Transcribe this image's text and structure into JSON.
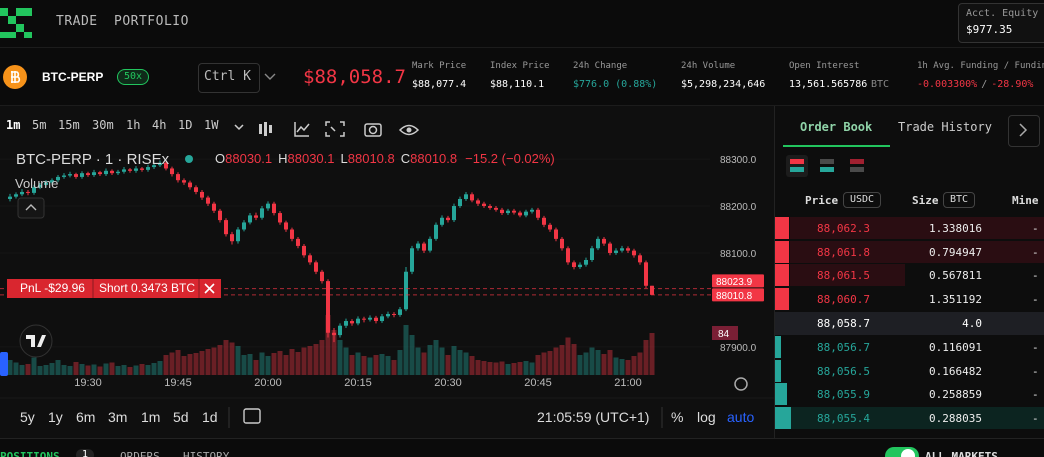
{
  "nav": {
    "links": [
      "TRADE",
      "PORTFOLIO"
    ],
    "equity_label": "Acct. Equity",
    "equity": "$977.35"
  },
  "ticker": {
    "symbol": "BTC-PERP",
    "leverage": "50x",
    "search": "Ctrl K",
    "price": "$88,058.7",
    "stats": [
      {
        "label": "Mark Price",
        "value": "$88,077.4"
      },
      {
        "label": "Index Price",
        "value": "$88,110.1"
      },
      {
        "label": "24h Change",
        "value": "$776.0 (0.88%)"
      },
      {
        "label": "24h Volume",
        "value": "$5,298,234,646"
      },
      {
        "label": "Open Interest",
        "value": "13,561.565786",
        "unit": "BTC"
      }
    ],
    "funding_label": "1h Avg. Funding / Fundin",
    "funding_1h": "-0.003300%",
    "funding_sep": "/",
    "funding_annual": "-28.90%"
  },
  "toolbar": {
    "intervals": [
      "1m",
      "5m",
      "15m",
      "30m",
      "1h",
      "4h",
      "1D",
      "1W"
    ]
  },
  "chart": {
    "type": "candlestick",
    "title": "BTC-PERP · 1 · RISEx",
    "ohlc_labels": [
      "O",
      "H",
      "L",
      "C"
    ],
    "change": "−15.2 (−0.02%)",
    "volume_label": "Volume",
    "ylim": [
      87840,
      88330
    ],
    "yticks": [
      {
        "value": 88300,
        "label": "88300.0"
      },
      {
        "value": 88200,
        "label": "88200.0"
      },
      {
        "value": 88100,
        "label": "88100.0"
      },
      {
        "value": 87900,
        "label": "87900.0"
      }
    ],
    "volume_lim": [
      0,
      460
    ],
    "xticks": [
      "19:30",
      "19:45",
      "20:00",
      "20:15",
      "20:30",
      "20:45",
      "21:00"
    ],
    "price_lines": [
      {
        "value": 88023.9,
        "label": "88023.9"
      },
      {
        "value": 88010.8,
        "label": "88010.8"
      }
    ],
    "position": {
      "pnl": "PnL -$29.96",
      "side": "Short 0.3473 BTC"
    },
    "candles": [
      [
        88215,
        88226,
        88210,
        88220,
        30
      ],
      [
        88220,
        88229,
        88216,
        88225,
        25
      ],
      [
        88225,
        88236,
        88221,
        88230,
        20
      ],
      [
        88230,
        88234,
        88223,
        88228,
        22
      ],
      [
        88228,
        88245,
        88224,
        88240,
        35
      ],
      [
        88240,
        88249,
        88236,
        88245,
        18
      ],
      [
        88245,
        88255,
        88241,
        88250,
        20
      ],
      [
        88250,
        88259,
        88246,
        88255,
        24
      ],
      [
        88255,
        88266,
        88251,
        88262,
        30
      ],
      [
        88262,
        88270,
        88258,
        88265,
        20
      ],
      [
        88265,
        88273,
        88261,
        88268,
        18
      ],
      [
        88268,
        88271,
        88258,
        88262,
        26
      ],
      [
        88262,
        88274,
        88258,
        88270,
        22
      ],
      [
        88270,
        88273,
        88262,
        88266,
        19
      ],
      [
        88266,
        88277,
        88262,
        88272,
        21
      ],
      [
        88272,
        88275,
        88264,
        88268,
        17
      ],
      [
        88268,
        88280,
        88264,
        88275,
        23
      ],
      [
        88275,
        88278,
        88266,
        88270,
        25
      ],
      [
        88270,
        88277,
        88266,
        88273,
        18
      ],
      [
        88273,
        88283,
        88269,
        88278,
        20
      ],
      [
        88278,
        88281,
        88271,
        88275,
        16
      ],
      [
        88275,
        88285,
        88271,
        88280,
        19
      ],
      [
        88280,
        88283,
        88273,
        88277,
        22
      ],
      [
        88277,
        88288,
        88273,
        88283,
        20
      ],
      [
        88283,
        88292,
        88279,
        88287,
        24
      ],
      [
        88287,
        88297,
        88283,
        88292,
        28
      ],
      [
        88292,
        88296,
        88276,
        88280,
        40
      ],
      [
        88280,
        88284,
        88263,
        88268,
        45
      ],
      [
        88268,
        88272,
        88250,
        88255,
        50
      ],
      [
        88255,
        88259,
        88245,
        88250,
        38
      ],
      [
        88250,
        88254,
        88235,
        88240,
        42
      ],
      [
        88240,
        88244,
        88225,
        88230,
        44
      ],
      [
        88230,
        88234,
        88213,
        88218,
        48
      ],
      [
        88218,
        88222,
        88200,
        88205,
        52
      ],
      [
        88205,
        88209,
        88185,
        88190,
        55
      ],
      [
        88190,
        88194,
        88165,
        88170,
        60
      ],
      [
        88170,
        88174,
        88135,
        88140,
        70
      ],
      [
        88140,
        88145,
        88118,
        88125,
        65
      ],
      [
        88125,
        88155,
        88120,
        88150,
        58
      ],
      [
        88150,
        88170,
        88146,
        88165,
        40
      ],
      [
        88165,
        88185,
        88161,
        88180,
        42
      ],
      [
        88180,
        88186,
        88170,
        88175,
        30
      ],
      [
        88175,
        88200,
        88171,
        88195,
        45
      ],
      [
        88195,
        88210,
        88190,
        88205,
        38
      ],
      [
        88205,
        88209,
        88180,
        88185,
        44
      ],
      [
        88185,
        88189,
        88160,
        88165,
        48
      ],
      [
        88165,
        88169,
        88145,
        88150,
        40
      ],
      [
        88150,
        88154,
        88125,
        88130,
        52
      ],
      [
        88130,
        88134,
        88110,
        88115,
        46
      ],
      [
        88115,
        88119,
        88090,
        88095,
        55
      ],
      [
        88095,
        88099,
        88075,
        88080,
        58
      ],
      [
        88080,
        88084,
        88055,
        88060,
        62
      ],
      [
        88060,
        88064,
        88035,
        88040,
        70
      ],
      [
        88040,
        88044,
        87920,
        87930,
        120
      ],
      [
        87930,
        87940,
        87910,
        87925,
        90
      ],
      [
        87925,
        87950,
        87920,
        87945,
        70
      ],
      [
        87945,
        87960,
        87940,
        87955,
        55
      ],
      [
        87955,
        87959,
        87945,
        87950,
        40
      ],
      [
        87950,
        87965,
        87946,
        87960,
        45
      ],
      [
        87960,
        87964,
        87952,
        87958,
        38
      ],
      [
        87958,
        87967,
        87954,
        87962,
        35
      ],
      [
        87962,
        87966,
        87950,
        87955,
        40
      ],
      [
        87955,
        87970,
        87951,
        87965,
        42
      ],
      [
        87965,
        87975,
        87961,
        87970,
        38
      ],
      [
        87970,
        87974,
        87963,
        87968,
        30
      ],
      [
        87968,
        87985,
        87964,
        87980,
        50
      ],
      [
        87980,
        88070,
        87976,
        88060,
        100
      ],
      [
        88060,
        88115,
        88055,
        88110,
        80
      ],
      [
        88110,
        88125,
        88105,
        88120,
        55
      ],
      [
        88120,
        88124,
        88100,
        88105,
        45
      ],
      [
        88105,
        88135,
        88101,
        88130,
        60
      ],
      [
        88130,
        88165,
        88126,
        88160,
        70
      ],
      [
        88160,
        88180,
        88156,
        88175,
        55
      ],
      [
        88175,
        88179,
        88165,
        88170,
        40
      ],
      [
        88170,
        88205,
        88166,
        88200,
        58
      ],
      [
        88200,
        88220,
        88196,
        88215,
        50
      ],
      [
        88215,
        88230,
        88211,
        88225,
        45
      ],
      [
        88225,
        88229,
        88208,
        88212,
        38
      ],
      [
        88212,
        88216,
        88200,
        88205,
        30
      ],
      [
        88205,
        88209,
        88196,
        88200,
        28
      ],
      [
        88200,
        88204,
        88192,
        88196,
        26
      ],
      [
        88196,
        88200,
        88188,
        88192,
        25
      ],
      [
        88192,
        88196,
        88181,
        88185,
        27
      ],
      [
        88185,
        88194,
        88181,
        88190,
        22
      ],
      [
        88190,
        88194,
        88182,
        88186,
        24
      ],
      [
        88186,
        88190,
        88176,
        88180,
        26
      ],
      [
        88180,
        88192,
        88176,
        88188,
        28
      ],
      [
        88188,
        88196,
        88184,
        88192,
        25
      ],
      [
        88192,
        88196,
        88170,
        88175,
        40
      ],
      [
        88175,
        88179,
        88155,
        88160,
        45
      ],
      [
        88160,
        88164,
        88145,
        88150,
        48
      ],
      [
        88150,
        88154,
        88125,
        88130,
        55
      ],
      [
        88130,
        88134,
        88105,
        88110,
        60
      ],
      [
        88110,
        88114,
        88075,
        88080,
        75
      ],
      [
        88080,
        88084,
        88065,
        88070,
        62
      ],
      [
        88070,
        88080,
        88066,
        88075,
        40
      ],
      [
        88075,
        88090,
        88071,
        88085,
        45
      ],
      [
        88085,
        88115,
        88081,
        88110,
        55
      ],
      [
        88110,
        88135,
        88106,
        88130,
        50
      ],
      [
        88130,
        88134,
        88115,
        88120,
        42
      ],
      [
        88120,
        88124,
        88095,
        88100,
        50
      ],
      [
        88100,
        88110,
        88096,
        88105,
        35
      ],
      [
        88105,
        88115,
        88101,
        88110,
        32
      ],
      [
        88110,
        88114,
        88100,
        88105,
        30
      ],
      [
        88105,
        88109,
        88090,
        88095,
        38
      ],
      [
        88095,
        88099,
        88075,
        88080,
        45
      ],
      [
        88080,
        88084,
        88025,
        88030.1,
        70
      ],
      [
        88030.1,
        88030.1,
        88010.8,
        88010.8,
        84
      ]
    ],
    "ranges": [
      "5y",
      "1y",
      "6m",
      "3m",
      "1m",
      "5d",
      "1d"
    ],
    "clock": "21:05:59 (UTC+1)",
    "scale_options": [
      "%",
      "log",
      "auto"
    ]
  },
  "order_book": {
    "tabs": [
      "Order Book",
      "Trade History"
    ],
    "headers": {
      "price": "Price",
      "price_unit": "USDC",
      "size": "Size",
      "size_unit": "BTC",
      "mine": "Mine"
    },
    "asks": [
      [
        "88,062.3",
        "1.338016",
        "-"
      ],
      [
        "88,061.8",
        "0.794947",
        "-"
      ],
      [
        "88,061.5",
        "0.567811",
        "-"
      ],
      [
        "88,060.7",
        "1.351192",
        "-"
      ]
    ],
    "mid": [
      "88,058.7",
      "4.0"
    ],
    "bids": [
      [
        "88,056.7",
        "0.116091",
        "-"
      ],
      [
        "88,056.5",
        "0.166482",
        "-"
      ],
      [
        "88,055.9",
        "0.258859",
        "-"
      ],
      [
        "88,055.4",
        "0.288035",
        "-"
      ]
    ]
  },
  "bottom_tabs": {
    "positions": "POSITIONS",
    "positions_count": "1",
    "orders": "ORDERS",
    "history": "HISTORY",
    "all_markets": "ALL MARKETS"
  }
}
